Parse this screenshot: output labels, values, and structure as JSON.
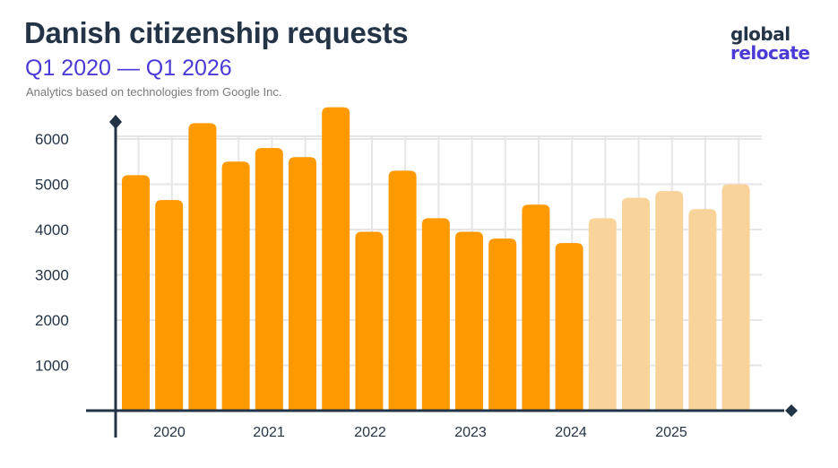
{
  "header": {
    "title": "Danish citizenship requests",
    "subtitle": "Q1 2020 — Q1 2026",
    "source": "Analytics based on technologies from Google Inc."
  },
  "logo": {
    "line1": "global",
    "line2": "relocate"
  },
  "colors": {
    "title": "#243447",
    "accent": "#4b3bd6",
    "bar_actual": "#ff9900",
    "bar_forecast": "#fad39a",
    "axis": "#243447",
    "grid": "#e6e6e6"
  },
  "chart_data": {
    "type": "bar",
    "title": "Danish citizenship requests",
    "subtitle": "Q1 2020 — Q1 2026",
    "xlabel": "",
    "ylabel": "",
    "ylim": [
      0,
      6500
    ],
    "y_ticks": [
      1000,
      2000,
      3000,
      4000,
      5000,
      6000
    ],
    "x_tick_labels": [
      "2020",
      "2021",
      "2022",
      "2023",
      "2024",
      "2025"
    ],
    "grid": true,
    "bars": [
      {
        "value": 5200,
        "style": "actual"
      },
      {
        "value": 4650,
        "style": "actual"
      },
      {
        "value": 6350,
        "style": "actual"
      },
      {
        "value": 5500,
        "style": "actual"
      },
      {
        "value": 5800,
        "style": "actual"
      },
      {
        "value": 5600,
        "style": "actual"
      },
      {
        "value": 6700,
        "style": "actual"
      },
      {
        "value": 3950,
        "style": "actual"
      },
      {
        "value": 5300,
        "style": "actual"
      },
      {
        "value": 4250,
        "style": "actual"
      },
      {
        "value": 3950,
        "style": "actual"
      },
      {
        "value": 3800,
        "style": "actual"
      },
      {
        "value": 4550,
        "style": "actual"
      },
      {
        "value": 3700,
        "style": "actual"
      },
      {
        "value": 4250,
        "style": "forecast"
      },
      {
        "value": 4700,
        "style": "forecast"
      },
      {
        "value": 4850,
        "style": "forecast"
      },
      {
        "value": 4450,
        "style": "forecast"
      },
      {
        "value": 5000,
        "style": "forecast"
      }
    ]
  }
}
